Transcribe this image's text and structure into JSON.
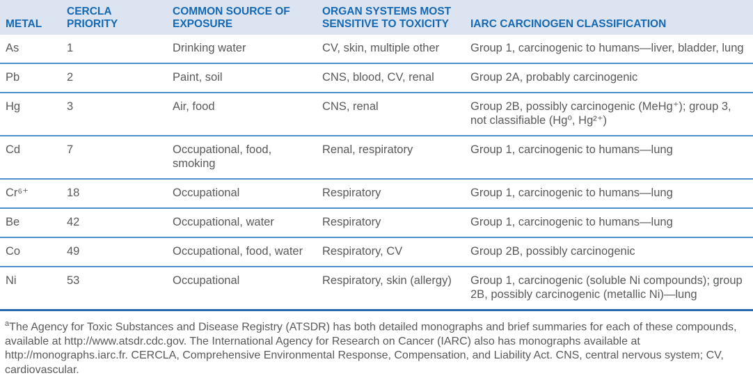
{
  "colors": {
    "header_bg": "#dce3f1",
    "header_text": "#1569b3",
    "row_divider": "#4d8ecd",
    "bottom_rule": "#2767ae",
    "body_text": "#58595b"
  },
  "table": {
    "columns": [
      {
        "label": "METAL"
      },
      {
        "label": "CERCLA PRIORITY"
      },
      {
        "label": "COMMON SOURCE OF EXPOSURE"
      },
      {
        "label": "ORGAN SYSTEMS MOST SENSITIVE TO TOXICITY"
      },
      {
        "label": "IARC CARCINOGEN CLASSIFICATION"
      }
    ],
    "rows": [
      {
        "metal": "As",
        "cercla_priority": "1",
        "source": "Drinking water",
        "organ_systems": "CV, skin, multiple other",
        "iarc": "Group 1, carcinogenic to humans—liver, bladder, lung"
      },
      {
        "metal": "Pb",
        "cercla_priority": "2",
        "source": "Paint, soil",
        "organ_systems": "CNS, blood, CV, renal",
        "iarc": "Group 2A, probably carcinogenic"
      },
      {
        "metal": "Hg",
        "cercla_priority": "3",
        "source": "Air, food",
        "organ_systems": "CNS, renal",
        "iarc": "Group 2B, possibly carcinogenic (MeHg⁺); group 3, not classifiable (Hg⁰, Hg²⁺)"
      },
      {
        "metal": "Cd",
        "cercla_priority": "7",
        "source": "Occupational, food, smoking",
        "organ_systems": "Renal, respiratory",
        "iarc": "Group 1, carcinogenic to humans—lung"
      },
      {
        "metal": "Cr⁶⁺",
        "cercla_priority": "18",
        "source": "Occupational",
        "organ_systems": "Respiratory",
        "iarc": "Group 1, carcinogenic to humans—lung"
      },
      {
        "metal": "Be",
        "cercla_priority": "42",
        "source": "Occupational, water",
        "organ_systems": "Respiratory",
        "iarc": "Group 1, carcinogenic to humans—lung"
      },
      {
        "metal": "Co",
        "cercla_priority": "49",
        "source": "Occupational, food, water",
        "organ_systems": "Respiratory, CV",
        "iarc": "Group 2B, possibly carcinogenic"
      },
      {
        "metal": "Ni",
        "cercla_priority": "53",
        "source": "Occupational",
        "organ_systems": "Respiratory, skin (allergy)",
        "iarc": "Group 1, carcinogenic (soluble Ni compounds); group 2B, possibly carcinogenic (metallic Ni)—lung"
      }
    ],
    "footnote_marker": "a",
    "footnote": "The Agency for Toxic Substances and Disease Registry (ATSDR) has both detailed monographs and brief summaries for each of these compounds, available at http://www.atsdr.cdc.gov. The International Agency for Research on Cancer (IARC) also has monographs available at http://monographs.iarc.fr. CERCLA, Comprehensive Environmental Response, Compensation, and Liability Act. CNS, central nervous system; CV, cardiovascular."
  }
}
